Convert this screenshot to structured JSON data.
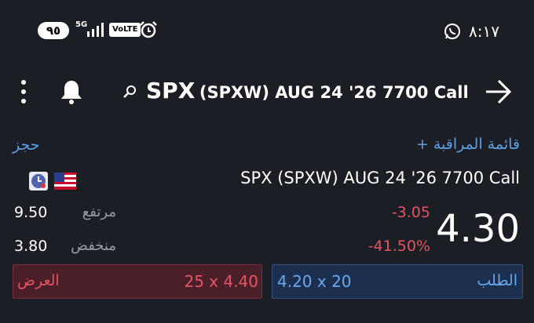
{
  "status_bar": {
    "time": "٨:١٧",
    "battery": "٩٥",
    "network": "5G",
    "volte": "VoLTE"
  },
  "header": {
    "symbol": "SPX",
    "title_rest": "(SPXW) AUG 24 '26 7700 Call"
  },
  "actions": {
    "watchlist": "+ قائمة المراقبة",
    "book": "حجز"
  },
  "quote": {
    "name": "SPX (SPXW) AUG 24 '26 7700 Call",
    "price": "4.30",
    "change": "-3.05",
    "change_percent": "-41.50%",
    "high_label": "مرتفع",
    "high": "9.50",
    "low_label": "منخفض",
    "low": "3.80"
  },
  "ask": {
    "label": "العرض",
    "value": "25 x 4.40"
  },
  "bid": {
    "label": "الطلب",
    "value": "4.20 x 20"
  }
}
